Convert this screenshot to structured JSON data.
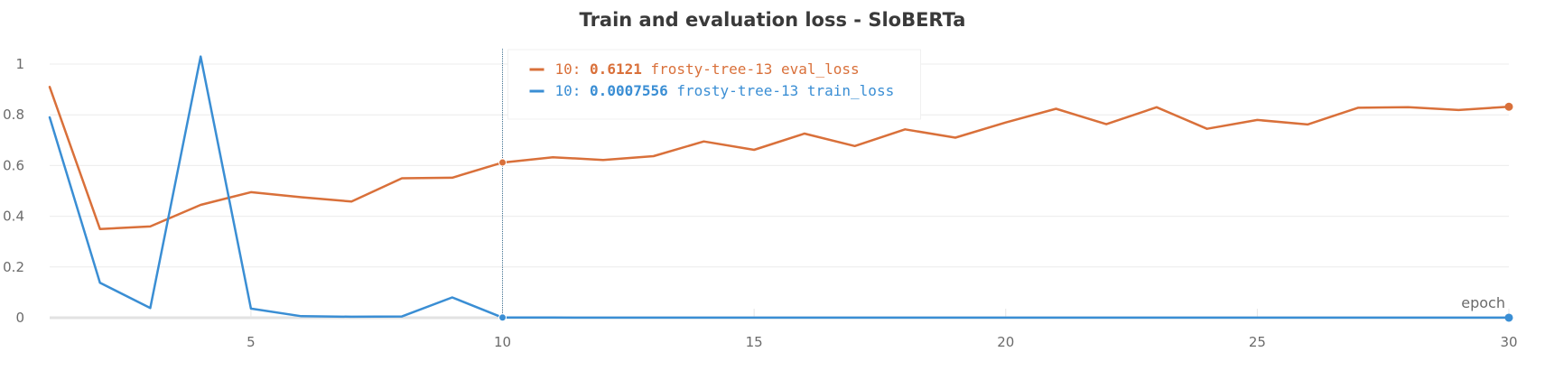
{
  "chart_data": {
    "type": "line",
    "title": "Train and evaluation loss - SloBERTa",
    "xlabel": "epoch",
    "ylabel": "",
    "xlim": [
      1,
      30
    ],
    "ylim": [
      0,
      1.05
    ],
    "x_ticks": [
      5,
      10,
      15,
      20,
      25,
      30
    ],
    "y_ticks": [
      0,
      0.2,
      0.4,
      0.6,
      0.8,
      1
    ],
    "y_tick_labels": [
      "0",
      "0.2",
      "0.4",
      "0.6",
      "0.8",
      "1"
    ],
    "grid": true,
    "x": [
      1,
      2,
      3,
      4,
      5,
      6,
      7,
      8,
      9,
      10,
      11,
      12,
      13,
      14,
      15,
      16,
      17,
      18,
      19,
      20,
      21,
      22,
      23,
      24,
      25,
      26,
      27,
      28,
      29,
      30
    ],
    "series": [
      {
        "name": "frosty-tree-13 eval_loss",
        "color": "#d9703a",
        "values": [
          0.91,
          0.35,
          0.36,
          0.445,
          0.495,
          0.475,
          0.458,
          0.55,
          0.552,
          0.612,
          0.633,
          0.622,
          0.637,
          0.695,
          0.662,
          0.726,
          0.677,
          0.743,
          0.71,
          0.77,
          0.824,
          0.763,
          0.83,
          0.745,
          0.78,
          0.762,
          0.828,
          0.83,
          0.819,
          0.832
        ]
      },
      {
        "name": "frosty-tree-13 train_loss",
        "color": "#3a8ed4",
        "values": [
          0.79,
          0.138,
          0.038,
          1.03,
          0.036,
          0.006,
          0.004,
          0.005,
          0.08,
          0.0007556,
          0.0006,
          0.0005,
          0.0004,
          0.0004,
          0.0003,
          0.0003,
          0.0003,
          0.0002,
          0.0002,
          0.0002,
          0.0002,
          0.0002,
          0.0002,
          0.0002,
          0.0002,
          0.0002,
          0.0002,
          0.0002,
          0.0002,
          0.0002
        ]
      }
    ],
    "hover": {
      "x": 10,
      "tooltip": [
        {
          "prefix": "10: ",
          "value": "0.6121",
          "label": " frosty-tree-13 eval_loss",
          "color": "#d9703a"
        },
        {
          "prefix": "10: ",
          "value": "0.0007556",
          "label": " frosty-tree-13 train_loss",
          "color": "#3a8ed4"
        }
      ]
    }
  }
}
